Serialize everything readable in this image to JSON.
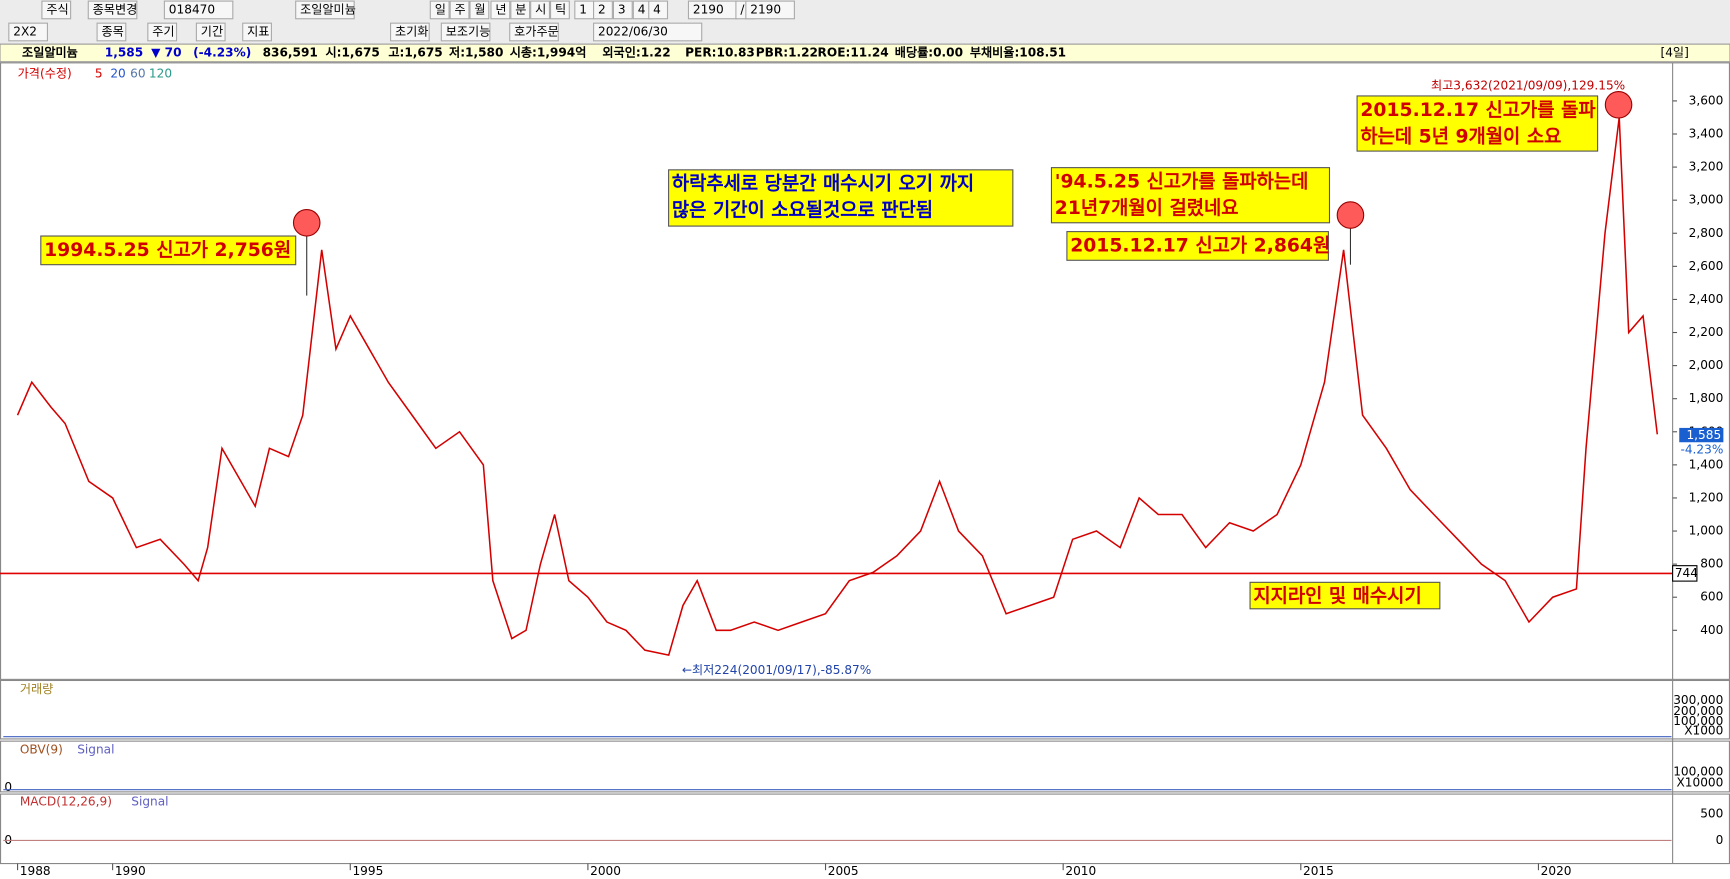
{
  "toolbar": {
    "row1": [
      "주식",
      "종목변경",
      "018470",
      "조일알미늄",
      "일",
      "주",
      "월",
      "년",
      "분",
      "시",
      "틱",
      "1",
      "2",
      "3",
      "4",
      "4",
      "2190",
      "/",
      "2190"
    ],
    "row2": [
      "2X2",
      "종목",
      "주기",
      "기간",
      "지표",
      "초기화",
      "보조기능",
      "호가주문",
      "2022/06/30"
    ]
  },
  "info_bar": {
    "items": [
      "조일알미늄",
      "1,585",
      "▼ 70",
      "(-4.23%)",
      "836,591",
      "시:1,675",
      "고:1,675",
      "저:1,580",
      "시총:1,994억",
      "외국인:1.22",
      "PER:10.83",
      "PBR:1.22",
      "ROE:11.24",
      "배당률:0.00",
      "부채비율:108.51"
    ],
    "period": "[4일]"
  },
  "chart_data": {
    "type": "line",
    "legend": [
      "가격(수정)",
      "5",
      "20",
      "60",
      "120"
    ],
    "x": [
      1988.0,
      1988.3,
      1988.7,
      1989.0,
      1989.5,
      1990.0,
      1990.5,
      1991.0,
      1991.5,
      1991.8,
      1992.0,
      1992.3,
      1992.7,
      1993.0,
      1993.3,
      1993.7,
      1994.0,
      1994.4,
      1994.7,
      1995.0,
      1995.4,
      1995.8,
      1996.3,
      1996.8,
      1997.3,
      1997.8,
      1998.0,
      1998.4,
      1998.7,
      1999.0,
      1999.3,
      1999.6,
      2000.0,
      2000.4,
      2000.8,
      2001.2,
      2001.7,
      2002.0,
      2002.3,
      2002.7,
      2003.0,
      2003.5,
      2004.0,
      2004.5,
      2005.0,
      2005.5,
      2006.0,
      2006.5,
      2007.0,
      2007.4,
      2007.8,
      2008.3,
      2008.8,
      2009.3,
      2009.8,
      2010.2,
      2010.7,
      2011.2,
      2011.6,
      2012.0,
      2012.5,
      2013.0,
      2013.5,
      2014.0,
      2014.5,
      2015.0,
      2015.5,
      2015.9,
      2016.3,
      2016.8,
      2017.3,
      2017.8,
      2018.3,
      2018.8,
      2019.3,
      2019.8,
      2020.3,
      2020.8,
      2021.0,
      2021.4,
      2021.7,
      2021.9,
      2022.2,
      2022.5
    ],
    "series": [
      {
        "name": "가격(수정)",
        "color": "#d40000",
        "values": [
          1700,
          1900,
          1750,
          1650,
          1300,
          1200,
          900,
          950,
          800,
          700,
          900,
          1500,
          1300,
          1150,
          1500,
          1450,
          1700,
          2700,
          2100,
          2300,
          2100,
          1900,
          1700,
          1500,
          1600,
          1400,
          700,
          350,
          400,
          800,
          1100,
          700,
          600,
          450,
          400,
          280,
          250,
          550,
          700,
          400,
          400,
          450,
          400,
          450,
          500,
          700,
          750,
          850,
          1000,
          1300,
          1000,
          850,
          500,
          550,
          600,
          950,
          1000,
          900,
          1200,
          1100,
          1100,
          900,
          1050,
          1000,
          1100,
          1400,
          1900,
          2700,
          1700,
          1500,
          1250,
          1100,
          950,
          800,
          700,
          450,
          600,
          650,
          1500,
          2800,
          3500,
          2200,
          2300,
          1585
        ]
      }
    ],
    "xlim": [
      1987.7,
      2022.8
    ],
    "xticks": [
      1988,
      1990,
      1995,
      2000,
      2005,
      2010,
      2015,
      2020
    ],
    "ylim": [
      110,
      3830
    ],
    "yticks": [
      400,
      600,
      800,
      {
        "value": 1000,
        "label": "1,000"
      },
      {
        "value": 1200,
        "label": "1,200"
      },
      {
        "value": 1400,
        "label": "1,400"
      },
      {
        "value": 1600,
        "label": "1,600"
      },
      {
        "value": 1800,
        "label": "1,800"
      },
      {
        "value": 2000,
        "label": "2,000"
      },
      {
        "value": 2200,
        "label": "2,200"
      },
      {
        "value": 2400,
        "label": "2,400"
      },
      {
        "value": 2600,
        "label": "2,600"
      },
      {
        "value": 2800,
        "label": "2,800"
      },
      {
        "value": 3000,
        "label": "3,000"
      },
      {
        "value": 3200,
        "label": "3,200"
      },
      {
        "value": 3400,
        "label": "3,400"
      },
      {
        "value": 3600,
        "label": "3,600"
      }
    ],
    "support_line": 744,
    "high_note": "최고3,632(2021/09/09),129.15%",
    "low_note": "←최저224(2001/09/17),-85.87%",
    "price_tag": "1,585",
    "change_tag": "-4.23%",
    "annotations": [
      [
        "1994.5.25 신고가 2,756원"
      ],
      [
        "하락추세로 당분간 매수시기 오기 까지",
        "많은 기간이 소요될것으로 판단됨"
      ],
      [
        "'94.5.25 신고가를 돌파하는데",
        "21년7개월이 걸렸네요"
      ],
      [
        "2015.12.17 신고가 2,864원"
      ],
      [
        "2015.12.17 신고가를 돌파",
        "하는데 5년 9개월이 소요"
      ],
      [
        "지지라인 및 매수시기"
      ]
    ]
  },
  "panels": [
    {
      "label": "거래량",
      "axis": [
        "300,000",
        "200,000",
        "100,000",
        "X1000"
      ]
    },
    {
      "label": "OBV(9)",
      "signal": "Signal",
      "zero": "0",
      "axis": [
        "100,000",
        "X10000"
      ]
    },
    {
      "label": "MACD(12,26,9)",
      "signal": "Signal",
      "zero": "0",
      "axis": [
        "500",
        "0"
      ]
    }
  ]
}
